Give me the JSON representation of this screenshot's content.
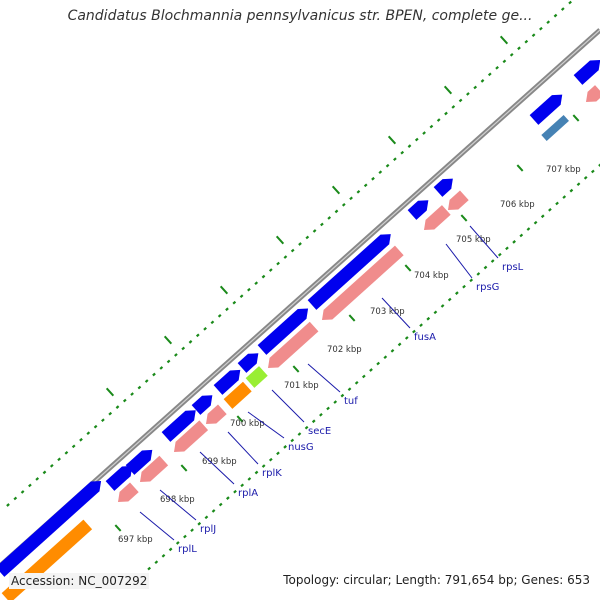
{
  "title": "Candidatus Blochmannia pennsylvanicus str. BPEN, complete ge...",
  "footer": {
    "accession_label": "Accession:",
    "accession": "NC_007292",
    "topology_label": "Topology:",
    "topology": "circular",
    "length_label": "Length:",
    "length": "791,654 bp",
    "genes_label": "Genes:",
    "genes": "653"
  },
  "kbp_ticks": [
    "697 kbp",
    "698 kbp",
    "699 kbp",
    "700 kbp",
    "701 kbp",
    "702 kbp",
    "703 kbp",
    "704 kbp",
    "705 kbp",
    "706 kbp",
    "707 kbp"
  ],
  "genes": [
    "rplL",
    "rplJ",
    "rplA",
    "rplK",
    "nusG",
    "secE",
    "tuf",
    "fusA",
    "rpsG",
    "rpsL"
  ],
  "colors": {
    "forward_cds": "#0000ee",
    "reverse_cds": "#f08c8c",
    "orange_feature": "#ff8c00",
    "green_feature": "#99ee33",
    "steel_feature": "#4682b4",
    "backbone": "#888888",
    "tick_green": "#1a8a1a",
    "label_blue": "#1a1aaa"
  }
}
